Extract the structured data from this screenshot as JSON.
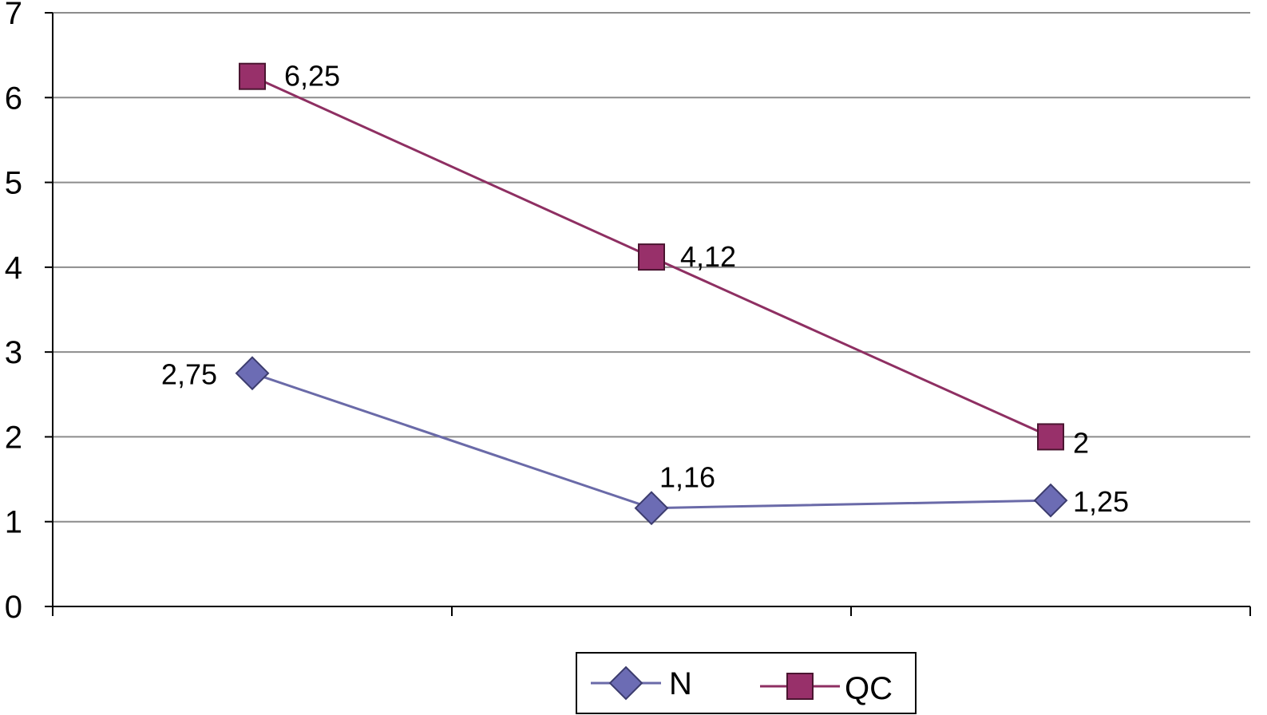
{
  "chart_data": {
    "type": "line",
    "categories": [
      "",
      "",
      ""
    ],
    "ylim": [
      0,
      7
    ],
    "yticks": [
      0,
      1,
      2,
      3,
      4,
      5,
      6,
      7
    ],
    "grid": true,
    "legend_position": "bottom",
    "series": [
      {
        "name": "N",
        "values": [
          2.75,
          1.16,
          1.25
        ],
        "labels": [
          "2,75",
          "1,16",
          "1,25"
        ],
        "color": "#6a6aa8",
        "marker": "diamond",
        "marker_color": "#6c6cb4"
      },
      {
        "name": "QC",
        "values": [
          6.25,
          4.12,
          2
        ],
        "labels": [
          "6,25",
          "4,12",
          "2"
        ],
        "color": "#8e2f62",
        "marker": "square",
        "marker_color": "#98306a"
      }
    ]
  }
}
